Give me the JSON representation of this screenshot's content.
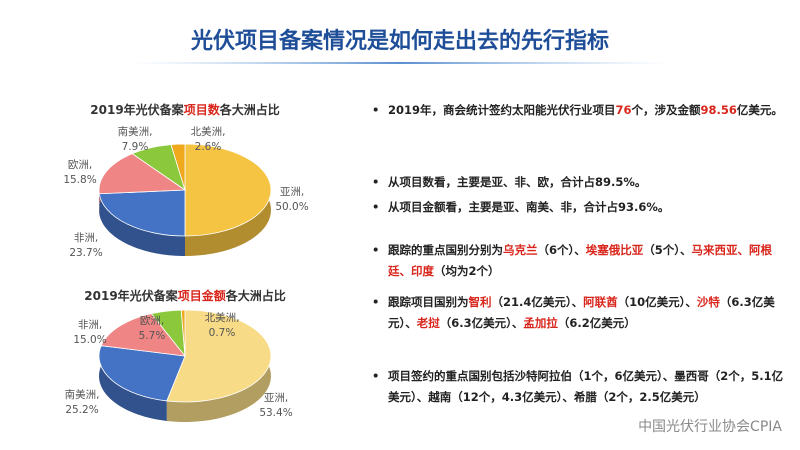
{
  "header": {
    "title": "光伏项目备案情况是如何走出去的先行指标"
  },
  "chart_data": [
    {
      "type": "pie",
      "title": [
        {
          "text": "2019年光伏备案"
        },
        {
          "text": "项目数",
          "em": true
        },
        {
          "text": "各大洲占比"
        }
      ],
      "categories": [
        "亚洲,",
        "非洲,",
        "欧洲,",
        "南美洲,",
        "北美洲,"
      ],
      "values": [
        50.0,
        23.7,
        15.8,
        7.9,
        2.6
      ],
      "value_labels": [
        "50.0%",
        "23.7%",
        "15.8%",
        "7.9%",
        "2.6%"
      ],
      "colors": [
        "#f6c443",
        "#4472c4",
        "#f08585",
        "#8cc83c",
        "#f0a81c"
      ]
    },
    {
      "type": "pie",
      "title": [
        {
          "text": "2019年光伏备案"
        },
        {
          "text": "项目金额",
          "em": true
        },
        {
          "text": "各大洲占比"
        }
      ],
      "categories": [
        "亚洲,",
        "南美洲,",
        "非洲,",
        "欧洲,",
        "北美洲,"
      ],
      "values": [
        53.4,
        25.2,
        15.0,
        5.7,
        0.7
      ],
      "value_labels": [
        "53.4%",
        "25.2%",
        "15.0%",
        "5.7%",
        "0.7%"
      ],
      "colors": [
        "#f7db86",
        "#4472c4",
        "#f08585",
        "#8cc83c",
        "#f0a81c"
      ]
    }
  ],
  "bullets": [
    {
      "runs": [
        {
          "text": "2019年，商会统计签约太阳能光伏行业项目"
        },
        {
          "text": "76",
          "em": true
        },
        {
          "text": "个，涉及金额"
        },
        {
          "text": "98.56",
          "em": true
        },
        {
          "text": "亿美元。"
        }
      ]
    },
    {
      "runs": [
        {
          "text": "从项目数看，主要是亚、非、欧，合计占89.5%。"
        }
      ]
    },
    {
      "runs": [
        {
          "text": "从项目金额看，主要是亚、南美、非，合计占93.6%。"
        }
      ]
    },
    {
      "runs": [
        {
          "text": "跟踪的重点国别分别为"
        },
        {
          "text": "乌克兰",
          "em": true
        },
        {
          "text": "（6个）、"
        },
        {
          "text": "埃塞俄比亚",
          "em": true
        },
        {
          "text": "（5个）、"
        },
        {
          "text": "马来西亚、阿根廷、印度",
          "em": true
        },
        {
          "text": "（均为2个）"
        }
      ]
    },
    {
      "runs": [
        {
          "text": "跟踪项目国别为"
        },
        {
          "text": "智利",
          "em": true
        },
        {
          "text": "（21.4亿美元）、"
        },
        {
          "text": "阿联酋",
          "em": true
        },
        {
          "text": "（10亿美元）、"
        },
        {
          "text": "沙特",
          "em": true
        },
        {
          "text": "（6.3亿美元）、"
        },
        {
          "text": "老挝",
          "em": true
        },
        {
          "text": "（6.3亿美元）、"
        },
        {
          "text": "孟加拉",
          "em": true
        },
        {
          "text": "（6.2亿美元）"
        }
      ]
    },
    {
      "runs": [
        {
          "text": "项目签约的重点国别包括沙特阿拉伯（1个，6亿美元）、墨西哥（2个，5.1亿美元）、越南（12个，4.3亿美元）、希腊（2个，2.5亿美元）"
        }
      ]
    }
  ],
  "watermark": "中国光伏行业协会CPIA"
}
